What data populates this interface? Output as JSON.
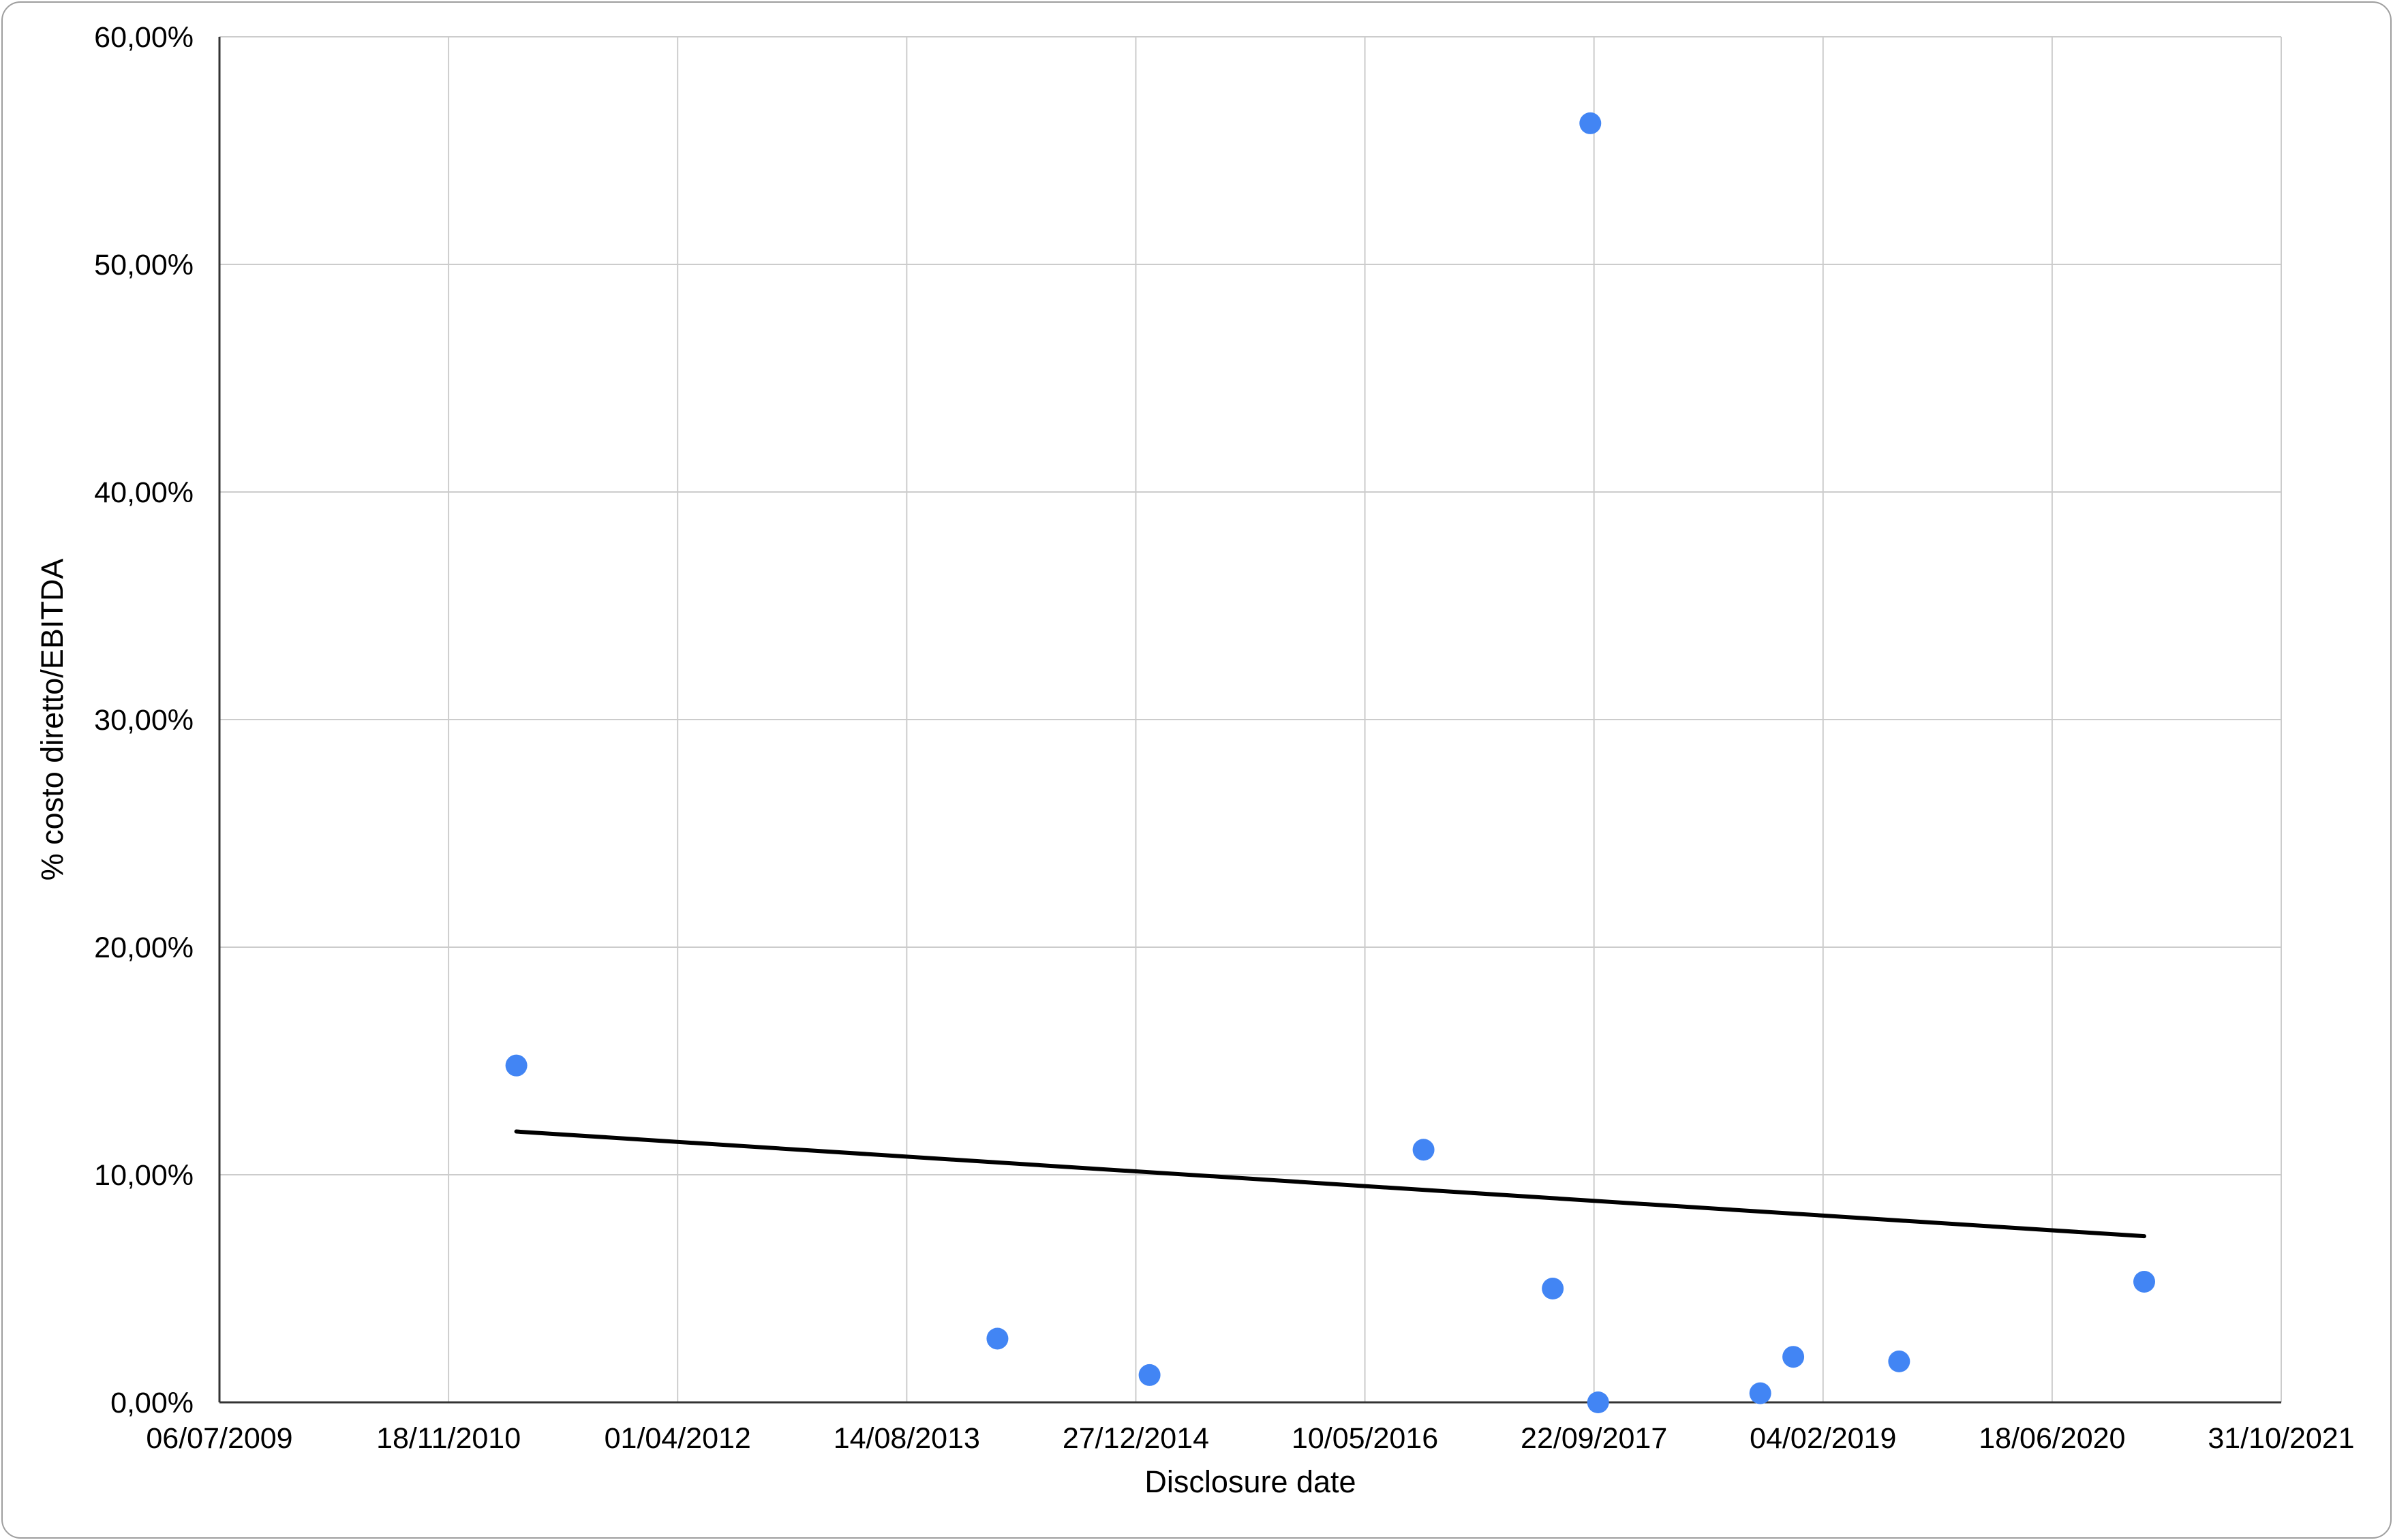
{
  "chart_data": {
    "type": "scatter",
    "xlabel": "Disclosure date",
    "ylabel": "% costo diretto/EBITDA",
    "x_ticks": [
      "06/07/2009",
      "18/11/2010",
      "01/04/2012",
      "14/08/2013",
      "27/12/2014",
      "10/05/2016",
      "22/09/2017",
      "04/02/2019",
      "18/06/2020",
      "31/10/2021"
    ],
    "y_ticks": [
      "0,00%",
      "10,00%",
      "20,00%",
      "30,00%",
      "40,00%",
      "50,00%",
      "60,00%"
    ],
    "xlim": [
      "2009-07-06",
      "2021-10-31"
    ],
    "ylim": [
      0,
      60
    ],
    "y_unit": "%",
    "grid": true,
    "points": [
      {
        "x": "2011-04-15",
        "y": 14.8
      },
      {
        "x": "2014-02-28",
        "y": 2.8
      },
      {
        "x": "2015-01-26",
        "y": 1.2
      },
      {
        "x": "2016-09-15",
        "y": 11.1
      },
      {
        "x": "2017-06-24",
        "y": 5.0
      },
      {
        "x": "2017-09-14",
        "y": 56.2
      },
      {
        "x": "2017-10-01",
        "y": 0.0
      },
      {
        "x": "2018-09-20",
        "y": 0.4
      },
      {
        "x": "2018-12-01",
        "y": 2.0
      },
      {
        "x": "2019-07-20",
        "y": 1.8
      },
      {
        "x": "2021-01-05",
        "y": 5.3
      }
    ],
    "trendline": {
      "type": "linear",
      "points": [
        {
          "x": "2011-04-15",
          "y": 11.9
        },
        {
          "x": "2021-01-05",
          "y": 7.3
        }
      ]
    },
    "colors": {
      "points": "#4285f4",
      "trendline": "#000000",
      "grid": "#cccccc",
      "axis": "#333333"
    }
  }
}
